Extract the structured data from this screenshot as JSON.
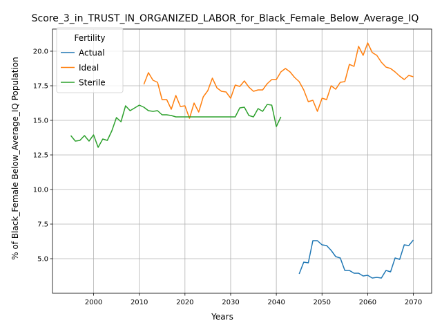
{
  "chart_data": {
    "type": "line",
    "title": "Score_3_in_TRUST_IN_ORGANIZED_LABOR_for_Black_Female_Below_Average_IQ",
    "xlabel": "Years",
    "ylabel": "% of Black_Female Below_Average_IQ Population",
    "xlim": [
      1991,
      2074
    ],
    "ylim": [
      2.5,
      21.6
    ],
    "xticks": [
      2000,
      2010,
      2020,
      2030,
      2040,
      2050,
      2060,
      2070
    ],
    "yticks": [
      5.0,
      7.5,
      10.0,
      12.5,
      15.0,
      17.5,
      20.0
    ],
    "grid": true,
    "legend": {
      "title": "Fertility",
      "position": "top-left"
    },
    "series": [
      {
        "name": "Actual",
        "color": "#1f77b4",
        "x": [
          2045,
          2046,
          2047,
          2048,
          2049,
          2050,
          2051,
          2052,
          2053,
          2054,
          2055,
          2056,
          2057,
          2058,
          2059,
          2060,
          2061,
          2062,
          2063,
          2064,
          2065,
          2066,
          2067,
          2068,
          2069,
          2070
        ],
        "y": [
          3.9,
          4.75,
          4.7,
          6.3,
          6.3,
          6.0,
          5.95,
          5.6,
          5.15,
          5.05,
          4.15,
          4.15,
          3.95,
          3.95,
          3.75,
          3.8,
          3.6,
          3.65,
          3.6,
          4.15,
          4.05,
          5.05,
          4.95,
          6.0,
          5.95,
          6.35
        ]
      },
      {
        "name": "Ideal",
        "color": "#ff7f0e",
        "x": [
          2011,
          2012,
          2013,
          2014,
          2015,
          2016,
          2017,
          2018,
          2019,
          2020,
          2021,
          2022,
          2023,
          2024,
          2025,
          2026,
          2027,
          2028,
          2029,
          2030,
          2031,
          2032,
          2033,
          2034,
          2035,
          2036,
          2037,
          2038,
          2039,
          2040,
          2041,
          2042,
          2043,
          2044,
          2045,
          2046,
          2047,
          2048,
          2049,
          2050,
          2051,
          2052,
          2053,
          2054,
          2055,
          2056,
          2057,
          2058,
          2059,
          2060,
          2061,
          2062,
          2063,
          2064,
          2065,
          2066,
          2067,
          2068,
          2069,
          2070
        ],
        "y": [
          17.6,
          18.45,
          17.9,
          17.75,
          16.5,
          16.5,
          15.8,
          16.8,
          16.0,
          16.05,
          15.15,
          16.25,
          15.6,
          16.7,
          17.15,
          18.05,
          17.35,
          17.1,
          17.05,
          16.6,
          17.55,
          17.45,
          17.85,
          17.4,
          17.1,
          17.2,
          17.2,
          17.65,
          17.95,
          17.95,
          18.5,
          18.75,
          18.5,
          18.1,
          17.8,
          17.2,
          16.35,
          16.45,
          15.65,
          16.6,
          16.5,
          17.5,
          17.25,
          17.75,
          17.8,
          19.05,
          18.9,
          20.35,
          19.7,
          20.6,
          19.9,
          19.7,
          19.2,
          18.85,
          18.75,
          18.5,
          18.2,
          17.95,
          18.25,
          18.15
        ]
      },
      {
        "name": "Sterile",
        "color": "#2ca02c",
        "x": [
          1995,
          1996,
          1997,
          1998,
          1999,
          2000,
          2001,
          2002,
          2003,
          2004,
          2005,
          2006,
          2007,
          2008,
          2009,
          2010,
          2011,
          2012,
          2013,
          2014,
          2015,
          2016,
          2017,
          2018,
          2019,
          2020,
          2021,
          2022,
          2023,
          2024,
          2025,
          2026,
          2027,
          2028,
          2029,
          2030,
          2031,
          2032,
          2033,
          2034,
          2035,
          2036,
          2037,
          2038,
          2039,
          2040,
          2041
        ],
        "y": [
          13.9,
          13.5,
          13.55,
          13.9,
          13.5,
          13.95,
          13.05,
          13.65,
          13.55,
          14.25,
          15.2,
          14.9,
          16.05,
          15.7,
          15.9,
          16.1,
          15.95,
          15.7,
          15.65,
          15.7,
          15.4,
          15.4,
          15.35,
          15.25,
          15.25,
          15.25,
          15.25,
          15.25,
          15.25,
          15.25,
          15.25,
          15.25,
          15.25,
          15.25,
          15.25,
          15.25,
          15.25,
          15.9,
          15.95,
          15.35,
          15.25,
          15.85,
          15.65,
          16.15,
          16.1,
          14.55,
          15.25
        ]
      }
    ]
  }
}
